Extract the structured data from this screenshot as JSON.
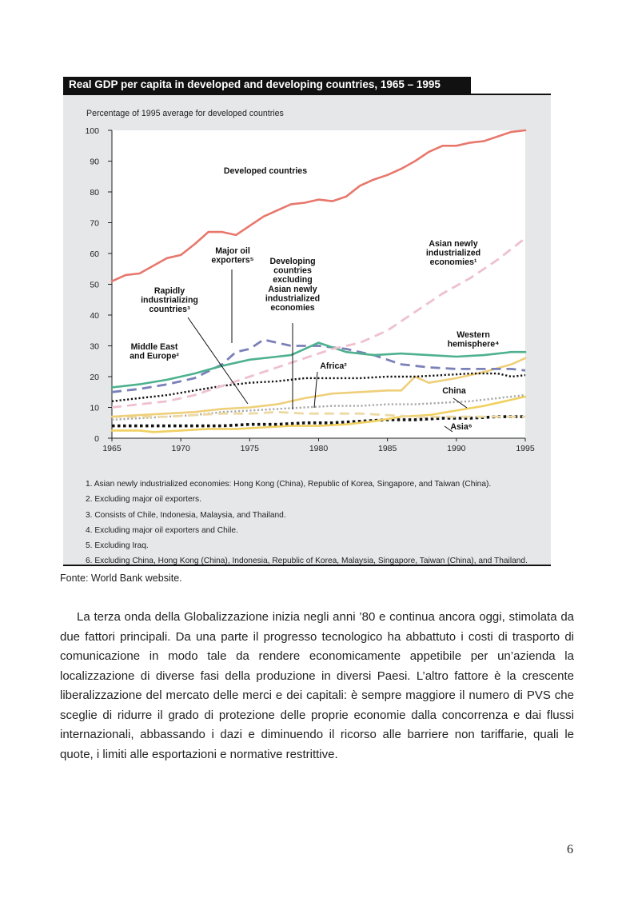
{
  "figure": {
    "title": "Real GDP per capita in developed and developing countries, 1965 – 1995",
    "notes": [
      "1. Asian newly industrialized economies: Hong Kong (China), Republic of Korea, Singapore, and Taiwan (China).",
      "2. Excluding major oil exporters.",
      "3. Consists of Chile, Indonesia, Malaysia, and Thailand.",
      "4. Excluding major oil exporters and Chile.",
      "5. Excluding Iraq.",
      "6. Excluding China, Hong Kong (China), Indonesia, Republic of Korea, Malaysia, Singapore, Taiwan (China), and Thailand."
    ],
    "source": "Fonte: World Bank website."
  },
  "chart_data": {
    "type": "line",
    "title": "Real GDP per capita in developed and developing countries, 1965 – 1995",
    "ylabel": "Percentage of 1995 average for developed countries",
    "xlabel": "",
    "xlim": [
      1965,
      1995
    ],
    "ylim": [
      0,
      100
    ],
    "xticks": [
      1965,
      1970,
      1975,
      1980,
      1985,
      1990,
      1995
    ],
    "yticks": [
      0,
      10,
      20,
      30,
      40,
      50,
      60,
      70,
      80,
      90,
      100
    ],
    "grid": false,
    "series": [
      {
        "name": "Developed countries",
        "color": "#e8776c",
        "style": "solid",
        "points": [
          [
            1965,
            51
          ],
          [
            1966,
            53
          ],
          [
            1967,
            53.5
          ],
          [
            1968,
            56
          ],
          [
            1969,
            58.5
          ],
          [
            1970,
            59.5
          ],
          [
            1971,
            63
          ],
          [
            1972,
            67
          ],
          [
            1973,
            67
          ],
          [
            1974,
            66
          ],
          [
            1975,
            69
          ],
          [
            1976,
            72
          ],
          [
            1977,
            74
          ],
          [
            1978,
            76
          ],
          [
            1979,
            76.5
          ],
          [
            1980,
            77.5
          ],
          [
            1981,
            77
          ],
          [
            1982,
            78.5
          ],
          [
            1983,
            82
          ],
          [
            1984,
            84
          ],
          [
            1985,
            85.5
          ],
          [
            1986,
            87.5
          ],
          [
            1987,
            90
          ],
          [
            1988,
            93
          ],
          [
            1989,
            95
          ],
          [
            1990,
            95
          ],
          [
            1991,
            96
          ],
          [
            1992,
            96.5
          ],
          [
            1993,
            98
          ],
          [
            1994,
            99.5
          ],
          [
            1995,
            100
          ]
        ]
      },
      {
        "name": "Asian newly industrialized economies¹",
        "color": "#eec0d0",
        "style": "dashed",
        "points": [
          [
            1965,
            10
          ],
          [
            1967,
            11
          ],
          [
            1969,
            12
          ],
          [
            1971,
            14
          ],
          [
            1973,
            17
          ],
          [
            1975,
            20
          ],
          [
            1977,
            23
          ],
          [
            1979,
            26
          ],
          [
            1981,
            29
          ],
          [
            1983,
            31
          ],
          [
            1985,
            35
          ],
          [
            1987,
            41
          ],
          [
            1989,
            47
          ],
          [
            1991,
            52
          ],
          [
            1993,
            58
          ],
          [
            1995,
            65
          ]
        ]
      },
      {
        "name": "Western hemisphere⁴",
        "color": "#4db18e",
        "style": "solid",
        "points": [
          [
            1965,
            16.5
          ],
          [
            1967,
            17.5
          ],
          [
            1969,
            19
          ],
          [
            1971,
            21
          ],
          [
            1973,
            23.5
          ],
          [
            1975,
            25.5
          ],
          [
            1977,
            26.5
          ],
          [
            1978,
            27
          ],
          [
            1980,
            31
          ],
          [
            1982,
            28
          ],
          [
            1984,
            27
          ],
          [
            1986,
            27.5
          ],
          [
            1988,
            27
          ],
          [
            1990,
            26.5
          ],
          [
            1992,
            27
          ],
          [
            1994,
            28
          ],
          [
            1995,
            28
          ]
        ]
      },
      {
        "name": "Major oil exporters⁵",
        "color": "#7a80b8",
        "style": "dashed",
        "points": [
          [
            1965,
            15
          ],
          [
            1967,
            16
          ],
          [
            1969,
            17.5
          ],
          [
            1971,
            19.5
          ],
          [
            1973,
            24
          ],
          [
            1974,
            28
          ],
          [
            1975,
            29
          ],
          [
            1976,
            32
          ],
          [
            1978,
            30
          ],
          [
            1980,
            30
          ],
          [
            1982,
            29
          ],
          [
            1984,
            27
          ],
          [
            1986,
            24
          ],
          [
            1988,
            23
          ],
          [
            1990,
            22.5
          ],
          [
            1992,
            22.5
          ],
          [
            1994,
            22.5
          ],
          [
            1995,
            22
          ]
        ]
      },
      {
        "name": "Middle East and Europe²",
        "color": "#111111",
        "style": "dotted",
        "points": [
          [
            1965,
            12
          ],
          [
            1967,
            13
          ],
          [
            1969,
            14
          ],
          [
            1971,
            15.5
          ],
          [
            1973,
            17
          ],
          [
            1975,
            18
          ],
          [
            1977,
            18.5
          ],
          [
            1979,
            19.5
          ],
          [
            1981,
            19.5
          ],
          [
            1983,
            19.5
          ],
          [
            1985,
            20
          ],
          [
            1987,
            20
          ],
          [
            1989,
            20.5
          ],
          [
            1991,
            21
          ],
          [
            1993,
            21
          ],
          [
            1994,
            20
          ],
          [
            1995,
            20.5
          ]
        ]
      },
      {
        "name": "Rapidly industrializing countries³",
        "color": "#eecf7a",
        "style": "solid",
        "points": [
          [
            1965,
            7
          ],
          [
            1967,
            7.5
          ],
          [
            1969,
            8
          ],
          [
            1971,
            8.5
          ],
          [
            1973,
            9.5
          ],
          [
            1975,
            10
          ],
          [
            1977,
            11
          ],
          [
            1979,
            13
          ],
          [
            1981,
            14.5
          ],
          [
            1983,
            15
          ],
          [
            1985,
            15.5
          ],
          [
            1986,
            15.5
          ],
          [
            1987,
            20
          ],
          [
            1988,
            18
          ],
          [
            1990,
            19.5
          ],
          [
            1992,
            21.5
          ],
          [
            1994,
            24
          ],
          [
            1995,
            26
          ]
        ]
      },
      {
        "name": "Developing countries excluding Asian newly industrialized economies",
        "color": "#ecd9a4",
        "style": "dashed",
        "points": [
          [
            1965,
            7
          ],
          [
            1967,
            7
          ],
          [
            1969,
            7
          ],
          [
            1971,
            7.5
          ],
          [
            1973,
            8
          ],
          [
            1975,
            8
          ],
          [
            1977,
            8.5
          ],
          [
            1979,
            8
          ],
          [
            1981,
            8
          ],
          [
            1983,
            8
          ],
          [
            1985,
            7.5
          ],
          [
            1987,
            7
          ],
          [
            1989,
            7
          ],
          [
            1991,
            7
          ],
          [
            1993,
            7
          ],
          [
            1995,
            7
          ]
        ]
      },
      {
        "name": "Africa²",
        "color": "#a8a8a8",
        "style": "dotted",
        "points": [
          [
            1965,
            6
          ],
          [
            1967,
            6.5
          ],
          [
            1969,
            7
          ],
          [
            1971,
            7.5
          ],
          [
            1973,
            8.5
          ],
          [
            1975,
            9
          ],
          [
            1977,
            9.5
          ],
          [
            1979,
            10
          ],
          [
            1981,
            10.5
          ],
          [
            1983,
            10.5
          ],
          [
            1985,
            11
          ],
          [
            1987,
            11
          ],
          [
            1989,
            11.5
          ],
          [
            1991,
            12
          ],
          [
            1993,
            13
          ],
          [
            1995,
            14
          ]
        ]
      },
      {
        "name": "China",
        "color": "#f0d060",
        "style": "solid",
        "points": [
          [
            1965,
            2.5
          ],
          [
            1967,
            2.5
          ],
          [
            1968,
            2
          ],
          [
            1970,
            2.5
          ],
          [
            1972,
            3
          ],
          [
            1974,
            3
          ],
          [
            1976,
            3.5
          ],
          [
            1978,
            4
          ],
          [
            1980,
            4
          ],
          [
            1982,
            4.5
          ],
          [
            1984,
            5.5
          ],
          [
            1986,
            7
          ],
          [
            1988,
            7.5
          ],
          [
            1990,
            9
          ],
          [
            1992,
            10.5
          ],
          [
            1994,
            12.5
          ],
          [
            1995,
            13.5
          ]
        ]
      },
      {
        "name": "Asia⁶",
        "color": "#111111",
        "style": "dotted-heavy",
        "points": [
          [
            1965,
            4
          ],
          [
            1967,
            4
          ],
          [
            1969,
            4
          ],
          [
            1971,
            4
          ],
          [
            1973,
            4
          ],
          [
            1975,
            4.5
          ],
          [
            1977,
            4.5
          ],
          [
            1979,
            5
          ],
          [
            1981,
            5
          ],
          [
            1983,
            5.5
          ],
          [
            1985,
            6
          ],
          [
            1987,
            6
          ],
          [
            1989,
            6.5
          ],
          [
            1991,
            6.5
          ],
          [
            1993,
            7
          ],
          [
            1995,
            7
          ]
        ]
      }
    ],
    "annotations": [
      "Developed countries",
      "Asian newly industrialized economies¹",
      "Major oil exporters⁵",
      "Developing countries excluding Asian newly industrialized economies",
      "Rapidly industrializing countries³",
      "Middle East and Europe²",
      "Western hemisphere⁴",
      "Africa²",
      "China",
      "Asia⁶"
    ]
  },
  "body": {
    "paragraph": "La terza onda della Globalizzazione inizia negli anni ’80 e continua ancora oggi, stimolata da due fattori principali. Da una parte il progresso tecnologico ha abbattuto i costi di trasporto di comunicazione in modo tale da rendere economicamente appetibile per un’azienda la localizzazione di diverse fasi della produzione in diversi Paesi. L’altro fattore è la crescente liberalizzazione del mercato delle merci e dei capitali: è sempre maggiore il numero di PVS che sceglie di ridurre il grado di protezione delle proprie economie dalla concorrenza e dai flussi internazionali, abbassando i dazi e diminuendo il ricorso alle barriere non tariffarie, quali le quote, i limiti alle esportazioni e normative restrittive."
  },
  "page_number": "6"
}
